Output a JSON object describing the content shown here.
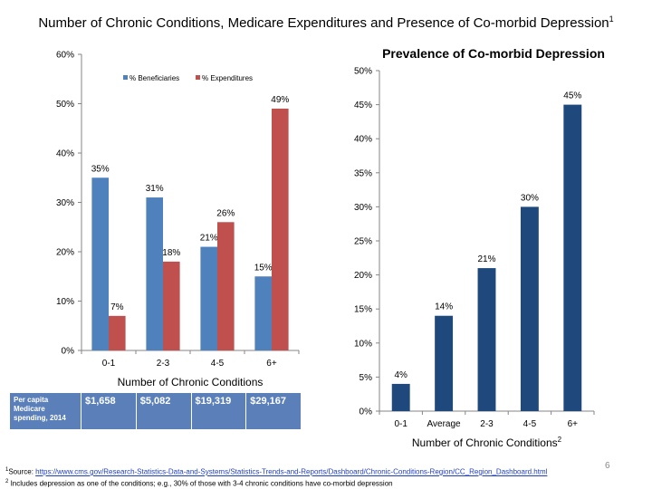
{
  "slide": {
    "title": "Number of Chronic Conditions, Medicare Expenditures and Presence of Co-morbid Depression",
    "title_footnote_mark": "1",
    "page_number": "6"
  },
  "chart_data": [
    {
      "type": "bar",
      "title": "",
      "categories": [
        "0-1",
        "2-3",
        "4-5",
        "6+"
      ],
      "series": [
        {
          "name": "% Beneficiaries",
          "values": [
            35,
            31,
            21,
            15
          ],
          "labels": [
            "35%",
            "31%",
            "21%",
            "15%"
          ],
          "color": "#4f81bd"
        },
        {
          "name": "% Expenditures",
          "values": [
            7,
            18,
            26,
            49
          ],
          "labels": [
            "7%",
            "18%",
            "26%",
            "49%"
          ],
          "color": "#c0504d"
        }
      ],
      "xlabel": "Number of Chronic Conditions",
      "ylabel": "",
      "ylim": [
        0,
        60
      ],
      "yticks": [
        "0%",
        "10%",
        "20%",
        "30%",
        "40%",
        "50%",
        "60%"
      ],
      "legend_position": "top",
      "grid": false
    },
    {
      "type": "bar",
      "title": "Prevalence of Co-morbid Depression",
      "categories": [
        "0-1",
        "Average",
        "2-3",
        "4-5",
        "6+"
      ],
      "series": [
        {
          "values": [
            4,
            14,
            21,
            30,
            45
          ],
          "labels": [
            "4%",
            "14%",
            "21%",
            "30%",
            "45%"
          ],
          "color": "#1f497d"
        }
      ],
      "xlabel": "Number of Chronic Conditions",
      "xlabel_footnote_mark": "2",
      "ylabel": "",
      "ylim": [
        0,
        50
      ],
      "yticks": [
        "0%",
        "5%",
        "10%",
        "15%",
        "20%",
        "25%",
        "30%",
        "35%",
        "40%",
        "45%",
        "50%"
      ],
      "grid": false
    }
  ],
  "spending_table": {
    "row_header": "Per capita Medicare spending, 2014",
    "values": [
      "$1,658",
      "$5,082",
      "$19,319",
      "$29,167"
    ]
  },
  "footnotes": {
    "note1_mark": "1",
    "note1_prefix": "Source: ",
    "note1_link": "https://www.cms.gov/Research-Statistics-Data-and-Systems/Statistics-Trends-and-Reports/Dashboard/Chronic-Conditions-Region/CC_Region_Dashboard.html",
    "note2_mark": "2",
    "note2_text": "Includes depression as one of the conditions; e.g., 30% of those with 3-4 chronic conditions have co-morbid depression"
  }
}
